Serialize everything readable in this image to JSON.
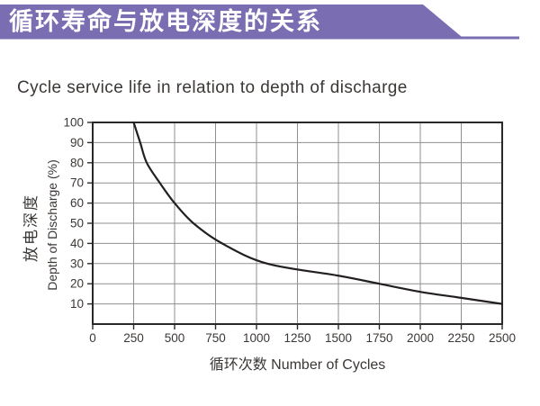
{
  "banner": {
    "title": "循环寿命与放电深度的关系",
    "bg_color": "#7A6DB2",
    "text_color": "#ffffff"
  },
  "subtitle": "Cycle service life in relation to depth of discharge",
  "chart_data": {
    "type": "line",
    "title": "Cycle service life in relation to depth of discharge",
    "xlabel": "循环次数 Number of Cycles",
    "ylabel_cn": "放电深度",
    "ylabel_en": "Depth of Discharge (%)",
    "xlim": [
      0,
      2500
    ],
    "ylim": [
      0,
      100
    ],
    "x_ticks": [
      0,
      250,
      500,
      750,
      1000,
      1250,
      1500,
      1750,
      2000,
      2250,
      2500
    ],
    "y_ticks": [
      10,
      20,
      30,
      40,
      50,
      60,
      70,
      80,
      90,
      100
    ],
    "grid": true,
    "legend": "none",
    "series": [
      {
        "name": "cycle-life-vs-dod",
        "points": [
          [
            250,
            100
          ],
          [
            290,
            90
          ],
          [
            330,
            80
          ],
          [
            410,
            70
          ],
          [
            500,
            60
          ],
          [
            615,
            50
          ],
          [
            790,
            40
          ],
          [
            1065,
            30
          ],
          [
            1500,
            24
          ],
          [
            1750,
            20
          ],
          [
            2000,
            16
          ],
          [
            2250,
            13
          ],
          [
            2500,
            10
          ]
        ]
      }
    ],
    "line_color": "#231f20",
    "grid_color": "#8f8f8f",
    "axis_color": "#2b2828",
    "text_color": "#3b3735"
  }
}
